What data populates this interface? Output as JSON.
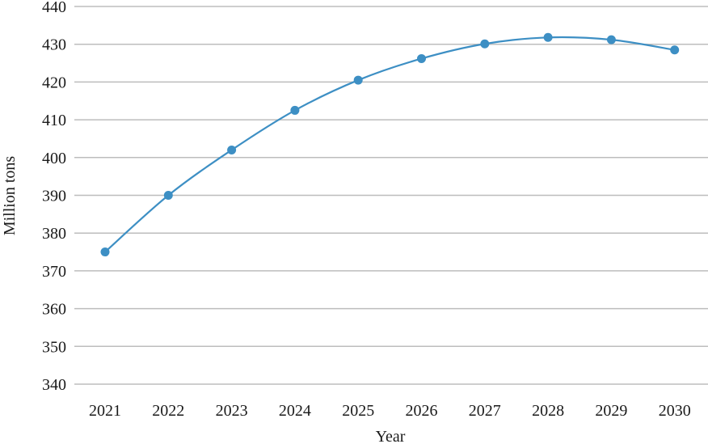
{
  "chart_data": {
    "type": "line",
    "title": "",
    "xlabel": "Year",
    "ylabel": "Million tons",
    "categories": [
      "2021",
      "2022",
      "2023",
      "2024",
      "2025",
      "2026",
      "2027",
      "2028",
      "2029",
      "2030"
    ],
    "series": [
      {
        "values": [
          375,
          390,
          402,
          412.5,
          420.5,
          426.2,
          430.1,
          431.8,
          431.2,
          428.5
        ]
      }
    ],
    "yticks": [
      "340",
      "350",
      "360",
      "370",
      "380",
      "390",
      "400",
      "410",
      "420",
      "430",
      "440"
    ],
    "ylim": [
      340,
      440
    ],
    "grid": true,
    "legend": "none",
    "colors": {
      "line": "#3d8fc4",
      "marker": "#3d8fc4",
      "grid": "#bdbdbd",
      "text": "#1a1a1a"
    }
  }
}
